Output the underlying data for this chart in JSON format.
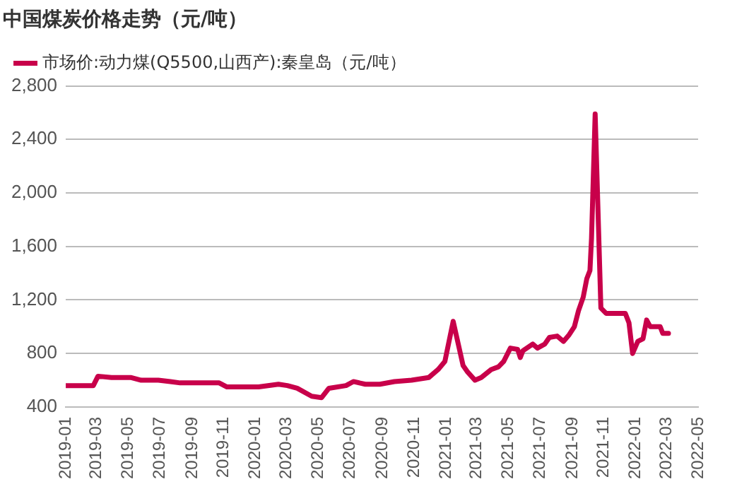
{
  "chart_data": {
    "type": "line",
    "title": "中国煤炭价格走势（元/吨）",
    "x": [
      "2019-01-01",
      "2019-02-23",
      "2019-03-04",
      "2019-03-30",
      "2019-05-07",
      "2019-05-26",
      "2019-06-28",
      "2019-07-21",
      "2019-08-09",
      "2019-10-23",
      "2019-11-07",
      "2020-01-07",
      "2020-02-14",
      "2020-03-02",
      "2020-03-21",
      "2020-04-18",
      "2020-05-07",
      "2020-05-21",
      "2020-06-23",
      "2020-07-07",
      "2020-07-30",
      "2020-08-27",
      "2020-09-24",
      "2020-10-27",
      "2020-11-29",
      "2020-12-17",
      "2020-12-30",
      "2021-01-15",
      "2021-02-03",
      "2021-02-12",
      "2021-02-26",
      "2021-03-10",
      "2021-03-29",
      "2021-04-12",
      "2021-04-22",
      "2021-05-05",
      "2021-05-19",
      "2021-05-24",
      "2021-05-29",
      "2021-06-17",
      "2021-06-26",
      "2021-07-10",
      "2021-07-19",
      "2021-08-03",
      "2021-08-15",
      "2021-08-26",
      "2021-09-05",
      "2021-09-13",
      "2021-09-22",
      "2021-09-29",
      "2021-10-05",
      "2021-10-08",
      "2021-10-15",
      "2021-10-26",
      "2021-11-05",
      "2021-12-12",
      "2021-12-19",
      "2021-12-26",
      "2022-01-05",
      "2022-01-15",
      "2022-01-22",
      "2022-01-29",
      "2022-02-17",
      "2022-02-22",
      "2022-03-05"
    ],
    "series": [
      {
        "name": "市场价:动力煤(Q5500,山西产):秦皇岛（元/吨）",
        "color": "#c8004a",
        "values": [
          560,
          560,
          630,
          620,
          620,
          600,
          600,
          590,
          580,
          580,
          550,
          550,
          570,
          560,
          540,
          480,
          470,
          540,
          560,
          590,
          570,
          570,
          590,
          600,
          620,
          680,
          740,
          1040,
          710,
          660,
          600,
          620,
          680,
          700,
          740,
          840,
          830,
          770,
          820,
          870,
          840,
          870,
          920,
          930,
          890,
          940,
          1000,
          1120,
          1220,
          1360,
          1420,
          1660,
          2590,
          1140,
          1100,
          1100,
          1030,
          800,
          890,
          910,
          1050,
          1000,
          1000,
          950,
          950
        ]
      }
    ],
    "xlim": [
      "2019-01",
      "2022-05"
    ],
    "xticks": [
      "2019-01",
      "2019-03",
      "2019-05",
      "2019-07",
      "2019-09",
      "2019-11",
      "2020-01",
      "2020-03",
      "2020-05",
      "2020-07",
      "2020-09",
      "2020-11",
      "2021-01",
      "2021-03",
      "2021-05",
      "2021-07",
      "2021-09",
      "2021-11",
      "2022-01",
      "2022-03",
      "2022-05"
    ],
    "ylim": [
      400,
      2800
    ],
    "yticks": [
      {
        "value": 400,
        "label": "400"
      },
      {
        "value": 800,
        "label": "800"
      },
      {
        "value": 1200,
        "label": "1,200"
      },
      {
        "value": 1600,
        "label": "1,600"
      },
      {
        "value": 2000,
        "label": "2,000"
      },
      {
        "value": 2400,
        "label": "2,400"
      },
      {
        "value": 2800,
        "label": "2,800"
      }
    ],
    "grid": "y",
    "legend": "top left",
    "marker": "none",
    "line_style": "solid"
  }
}
